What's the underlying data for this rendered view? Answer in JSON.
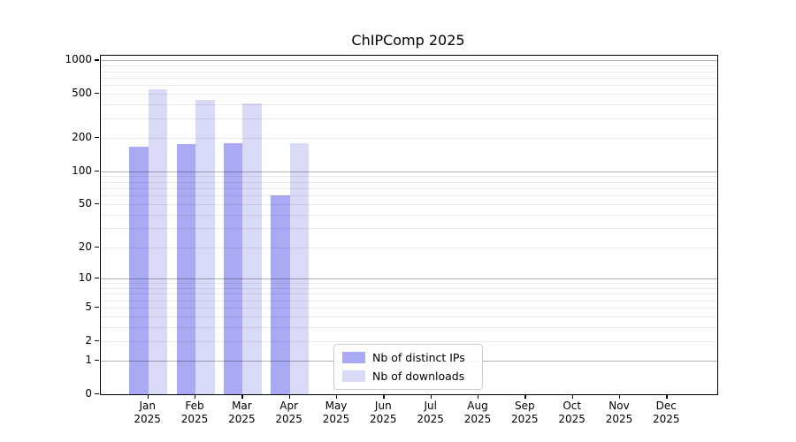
{
  "title": "ChIPComp 2025",
  "chart_data": {
    "type": "bar",
    "title": "ChIPComp 2025",
    "categories": [
      "Jan 2025",
      "Feb 2025",
      "Mar 2025",
      "Apr 2025",
      "May 2025",
      "Jun 2025",
      "Jul 2025",
      "Aug 2025",
      "Sep 2025",
      "Oct 2025",
      "Nov 2025",
      "Dec 2025"
    ],
    "series": [
      {
        "name": "Nb of distinct IPs",
        "color": "#a9a9f4",
        "values": [
          166,
          176,
          178,
          60,
          0,
          0,
          0,
          0,
          0,
          0,
          0,
          0
        ]
      },
      {
        "name": "Nb of downloads",
        "color": "#d9d9f8",
        "values": [
          549,
          443,
          410,
          180,
          0,
          0,
          0,
          0,
          0,
          0,
          0,
          0
        ]
      }
    ],
    "xlabel": "",
    "ylabel": "",
    "yscale": "log1p",
    "ylim": [
      0,
      1100
    ],
    "yticks": [
      0,
      1,
      2,
      5,
      10,
      20,
      50,
      100,
      200,
      500,
      1000
    ],
    "major_gridlines": [
      1,
      10,
      100,
      1000
    ],
    "minor_gridlines": [
      2,
      3,
      4,
      5,
      6,
      7,
      8,
      9,
      20,
      30,
      40,
      50,
      60,
      70,
      80,
      90,
      200,
      300,
      400,
      500,
      600,
      700,
      800,
      900
    ],
    "grid": true,
    "legend_position": "lower center",
    "legend": [
      {
        "label": "Nb of distinct IPs",
        "color": "#a9a9f4"
      },
      {
        "label": "Nb of downloads",
        "color": "#d9d9f8"
      }
    ]
  },
  "colors": {
    "distinct_ips": "#a9a9f4",
    "downloads": "#d9d9f8",
    "major_grid": "#b3b3b3",
    "minor_grid": "#e8e8e8",
    "axis": "#000000",
    "legend_border": "#cccccc"
  }
}
